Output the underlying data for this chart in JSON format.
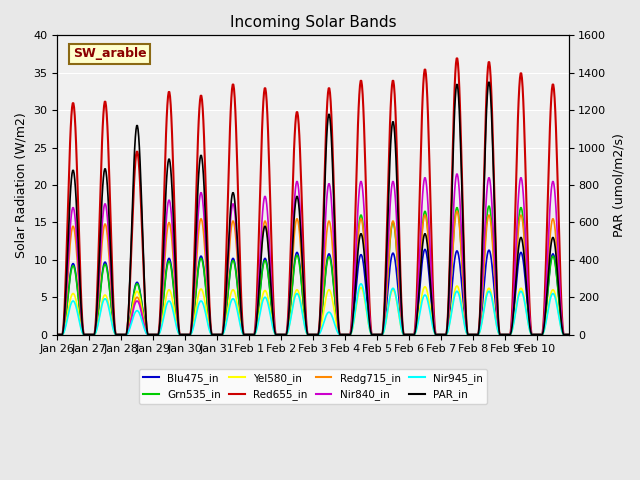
{
  "title": "Incoming Solar Bands",
  "ylabel_left": "Solar Radiation (W/m2)",
  "ylabel_right": "PAR (umol/m2/s)",
  "ylim_left": [
    0,
    40
  ],
  "ylim_right": [
    0,
    1600
  ],
  "annotation_text": "SW_arable",
  "annotation_bg": "#ffffcc",
  "annotation_fg": "#8b0000",
  "background_color": "#e8e8e8",
  "plot_bg": "#f0f0f0",
  "series": {
    "Blu475_in": {
      "color": "#0000cc",
      "lw": 1.2
    },
    "Grn535_in": {
      "color": "#00cc00",
      "lw": 1.2
    },
    "Yel580_in": {
      "color": "#ffff00",
      "lw": 1.2
    },
    "Red655_in": {
      "color": "#cc0000",
      "lw": 1.5
    },
    "Redg715_in": {
      "color": "#ff8800",
      "lw": 1.2
    },
    "Nir840_in": {
      "color": "#cc00cc",
      "lw": 1.2
    },
    "Nir945_in": {
      "color": "#00ffff",
      "lw": 1.2
    },
    "PAR_in": {
      "color": "#000000",
      "lw": 1.2
    }
  },
  "x_tick_labels": [
    "Jan 26",
    "Jan 27",
    "Jan 28",
    "Jan 29",
    "Jan 30",
    "Jan 31",
    "Feb 1",
    "Feb 2",
    "Feb 3",
    "Feb 4",
    "Feb 5",
    "Feb 6",
    "Feb 7",
    "Feb 8",
    "Feb 9",
    "Feb 10"
  ],
  "n_days": 16,
  "pts_per_day": 48,
  "day_peaks": {
    "Blu475_in": [
      9.5,
      9.7,
      7.0,
      10.2,
      10.5,
      10.2,
      10.2,
      11.0,
      10.8,
      10.7,
      10.9,
      11.4,
      11.2,
      11.3,
      11.0,
      10.8
    ],
    "Grn535_in": [
      9.2,
      9.4,
      6.8,
      9.8,
      10.2,
      9.9,
      9.9,
      10.6,
      10.4,
      16.0,
      15.0,
      16.5,
      17.0,
      17.2,
      17.0,
      10.5
    ],
    "Yel580_in": [
      5.5,
      5.3,
      5.8,
      6.0,
      6.1,
      6.0,
      5.9,
      6.0,
      6.0,
      6.3,
      6.0,
      6.4,
      6.5,
      6.2,
      6.2,
      6.0
    ],
    "Red655_in": [
      31.0,
      31.2,
      24.5,
      32.5,
      32.0,
      33.5,
      33.0,
      29.8,
      33.0,
      34.0,
      34.0,
      35.5,
      37.0,
      36.5,
      35.0,
      33.5
    ],
    "Redg715_in": [
      14.5,
      14.8,
      5.0,
      15.0,
      15.5,
      15.2,
      15.2,
      15.5,
      15.2,
      15.5,
      15.2,
      16.0,
      16.5,
      16.0,
      16.0,
      15.5
    ],
    "Nir840_in": [
      17.0,
      17.5,
      4.5,
      18.0,
      19.0,
      17.5,
      18.5,
      20.5,
      20.2,
      20.5,
      20.5,
      21.0,
      21.5,
      21.0,
      21.0,
      20.5
    ],
    "Nir945_in": [
      4.5,
      4.8,
      3.2,
      4.5,
      4.5,
      4.8,
      5.0,
      5.5,
      3.0,
      6.8,
      6.2,
      5.3,
      5.8,
      5.8,
      5.8,
      5.5
    ],
    "PAR_in": [
      22.0,
      22.2,
      28.0,
      23.5,
      24.0,
      19.0,
      14.5,
      18.5,
      29.5,
      13.5,
      28.5,
      13.5,
      33.5,
      33.8,
      13.0,
      13.0
    ]
  },
  "yticks_left": [
    0,
    5,
    10,
    15,
    20,
    25,
    30,
    35,
    40
  ],
  "yticks_right": [
    0,
    200,
    400,
    600,
    800,
    1000,
    1200,
    1400,
    1600
  ]
}
